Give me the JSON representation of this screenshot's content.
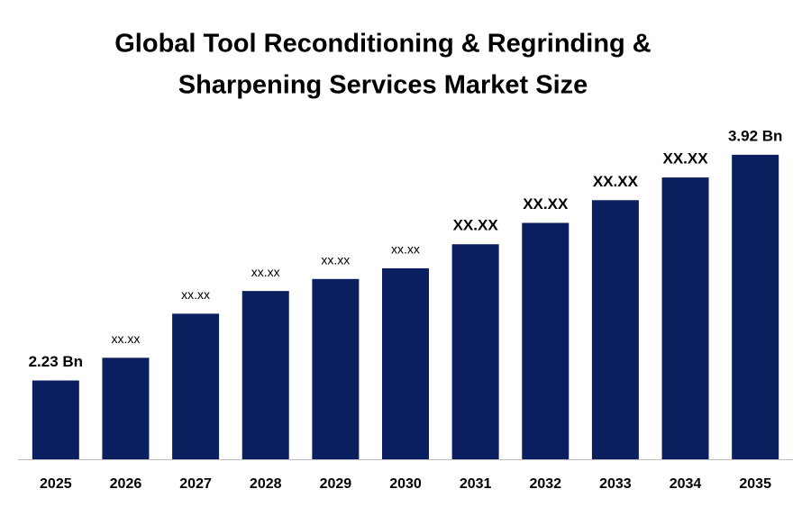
{
  "chart_data": {
    "type": "bar",
    "title": [
      "Global Tool Reconditioning & Regrinding &",
      "Sharpening Services Market Size"
    ],
    "categories": [
      "2025",
      "2026",
      "2027",
      "2028",
      "2029",
      "2030",
      "2031",
      "2032",
      "2033",
      "2034",
      "2035"
    ],
    "values": [
      2.23,
      2.4,
      2.73,
      2.9,
      2.99,
      3.07,
      3.25,
      3.41,
      3.58,
      3.75,
      3.92
    ],
    "value_labels": [
      "2.23 Bn",
      "xx.xx",
      "xx.xx",
      "xx.xx",
      "xx.xx",
      "xx.xx",
      "XX.XX",
      "XX.XX",
      "XX.XX",
      "XX.XX",
      "3.92 Bn"
    ],
    "color": "#0b1f5e",
    "ylim": [
      1.64,
      4.0
    ]
  }
}
